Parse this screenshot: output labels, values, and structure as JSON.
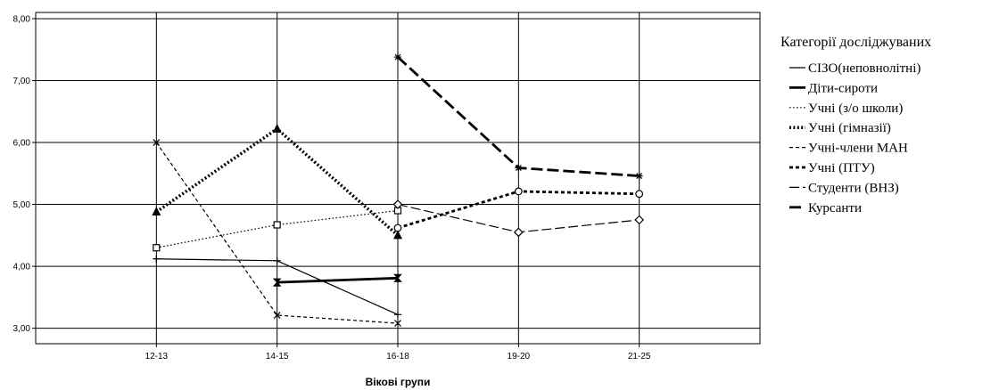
{
  "chart_data": {
    "type": "line",
    "title": "",
    "xlabel": "Вікові групи",
    "ylabel": "",
    "categories": [
      "12-13",
      "14-15",
      "16-18",
      "19-20",
      "21-25"
    ],
    "ylim": [
      2.75,
      8.1
    ],
    "yticks": [
      "3,00",
      "4,00",
      "5,00",
      "6,00",
      "7,00",
      "8,00"
    ],
    "grid": true,
    "legend_title": "Категорії досліджуваних",
    "legend_position": "right",
    "series": [
      {
        "name": "СІЗО(неповнолітні)",
        "style": "solid",
        "weight": "thin",
        "marker": "plus",
        "values": [
          4.12,
          4.09,
          3.22,
          null,
          null
        ]
      },
      {
        "name": "Діти-сироти",
        "style": "solid",
        "weight": "thick",
        "marker": "hourglass",
        "values": [
          null,
          3.74,
          3.81,
          null,
          null
        ]
      },
      {
        "name": "Учні  (з/о школи)",
        "style": "dotted",
        "weight": "thin",
        "marker": "square",
        "values": [
          4.3,
          4.67,
          4.9,
          null,
          null
        ]
      },
      {
        "name": "Учні (гімназії)",
        "style": "dotted",
        "weight": "thick",
        "marker": "triangle",
        "values": [
          4.88,
          6.22,
          4.5,
          null,
          null
        ]
      },
      {
        "name": "Учні-члени МАН",
        "style": "dashed",
        "weight": "thin",
        "marker": "x",
        "values": [
          6.0,
          3.21,
          3.08,
          null,
          null
        ]
      },
      {
        "name": "Учні  (ПТУ)",
        "style": "dashed",
        "weight": "thick",
        "marker": "circle",
        "values": [
          null,
          null,
          4.62,
          5.21,
          5.17
        ]
      },
      {
        "name": "Студенти (ВНЗ)",
        "style": "longdash",
        "weight": "thin",
        "marker": "diamond",
        "values": [
          null,
          null,
          5.0,
          4.55,
          4.75
        ]
      },
      {
        "name": "Курсанти",
        "style": "longdash",
        "weight": "thick",
        "marker": "star",
        "values": [
          null,
          null,
          7.38,
          5.59,
          5.46
        ]
      }
    ]
  }
}
